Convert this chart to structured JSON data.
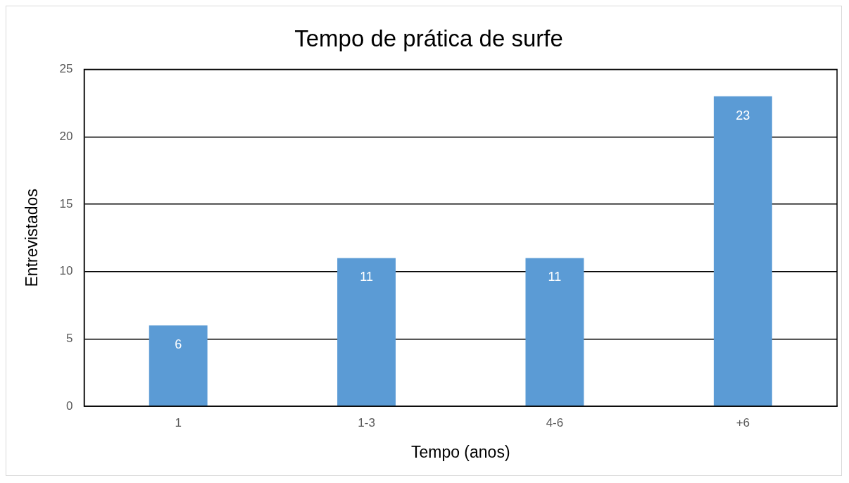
{
  "chart_data": {
    "type": "bar",
    "title": "Tempo de prática de surfe",
    "xlabel": "Tempo (anos)",
    "ylabel": "Entrevistados",
    "categories": [
      "1",
      "1-3",
      "4-6",
      "+6"
    ],
    "values": [
      6,
      11,
      11,
      23
    ],
    "color": "#5b9bd5",
    "ylim": [
      0,
      25
    ],
    "yticks": [
      0,
      5,
      10,
      15,
      20,
      25
    ],
    "grid": "y",
    "data_labels": true
  }
}
